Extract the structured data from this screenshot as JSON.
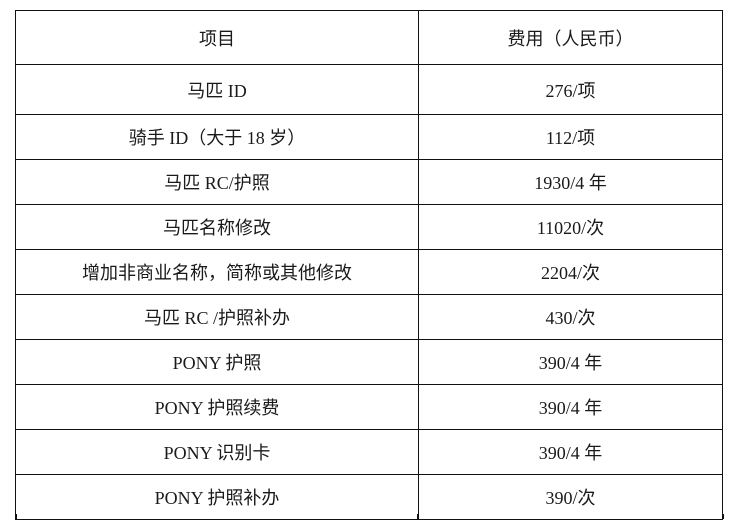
{
  "table": {
    "headers": [
      "项目",
      "费用（人民币）"
    ],
    "rows": [
      [
        "马匹 ID",
        "276/项"
      ],
      [
        "骑手 ID（大于 18 岁）",
        "112/项"
      ],
      [
        "马匹 RC/护照",
        "1930/4 年"
      ],
      [
        "马匹名称修改",
        "11020/次"
      ],
      [
        "增加非商业名称，简称或其他修改",
        "2204/次"
      ],
      [
        "马匹 RC /护照补办",
        "430/次"
      ],
      [
        "PONY 护照",
        "390/4 年"
      ],
      [
        "PONY 护照续费",
        "390/4 年"
      ],
      [
        "PONY 识别卡",
        "390/4 年"
      ],
      [
        "PONY 护照补办",
        "390/次"
      ]
    ]
  }
}
